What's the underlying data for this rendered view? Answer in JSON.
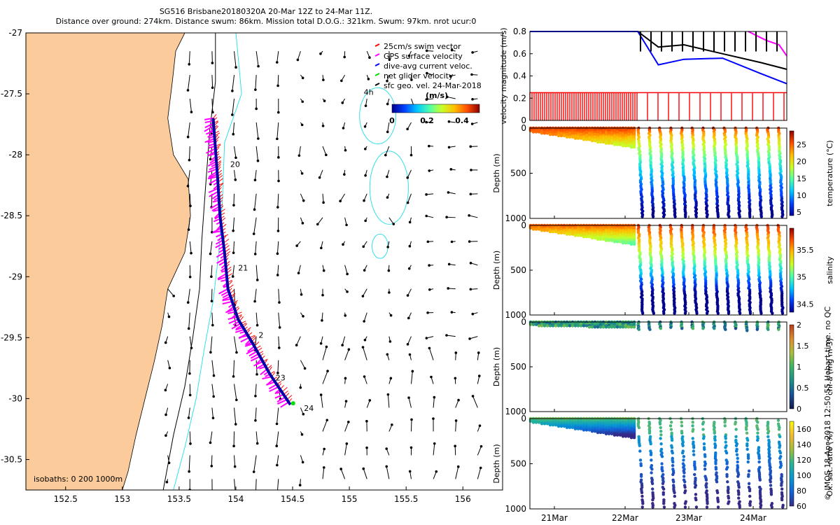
{
  "header": {
    "line1": "SG516 Brisbane20180320A 20-Mar 12Z to 24-Mar 11Z.",
    "line2": "Distance over ground: 274km. Distance swum: 86km. Mission total D.O.G.: 321km. Swum: 97km. nrot ucur:0"
  },
  "credit": "© IMOS 18-Apr-2018 12:50:55 Hobart time. no QC",
  "colors": {
    "land": "#fbcb9b",
    "isobath_200": "#000000",
    "isobath_1000": "#33e0e8",
    "swim_vector": "#ff0000",
    "gps_velocity": "#ff00ff",
    "dive_avg_current": "#0000ff",
    "net_glider_velocity": "#00dd00",
    "track": "#0000aa"
  },
  "chart_data": [
    {
      "type": "scatter",
      "id": "map",
      "xlim": [
        152.15,
        156.35
      ],
      "ylim": [
        -30.75,
        -27
      ],
      "xticks": [
        152.5,
        153,
        153.5,
        154,
        154.5,
        155,
        155.5,
        156
      ],
      "yticks": [
        -27,
        -27.5,
        -28,
        -28.5,
        -29,
        -29.5,
        -30,
        -30.5
      ],
      "legend": {
        "placement": "top-right",
        "entries": [
          {
            "label": "25cm/s swim vector",
            "color": "#ff0000"
          },
          {
            "label": "GPS surface velocity",
            "color": "#ff00ff"
          },
          {
            "label": "dive-avg current veloc.",
            "color": "#0000ff"
          },
          {
            "label": "net glider velocity",
            "color": "#00dd00"
          },
          {
            "label": "sfc geo. vel. 24-Mar-2018",
            "color": "#000000"
          }
        ]
      },
      "colorbar": {
        "title": "(m/s)",
        "ticks": [
          "0",
          "0.2",
          "0.4"
        ],
        "range": [
          0,
          0.5
        ]
      },
      "isobaths_label": "isobaths: 0   200  1000m",
      "eddy_label": "4h",
      "track": [
        {
          "lon": 153.8,
          "lat": -27.7
        },
        {
          "lon": 153.82,
          "lat": -27.95
        },
        {
          "lon": 153.84,
          "lat": -28.2
        },
        {
          "lon": 153.86,
          "lat": -28.5
        },
        {
          "lon": 153.9,
          "lat": -28.8
        },
        {
          "lon": 153.93,
          "lat": -29.1
        },
        {
          "lon": 154.02,
          "lat": -29.35
        },
        {
          "lon": 154.15,
          "lat": -29.55
        },
        {
          "lon": 154.3,
          "lat": -29.8
        },
        {
          "lon": 154.48,
          "lat": -30.05
        }
      ],
      "day_labels": [
        {
          "text": "20",
          "lon": 153.95,
          "lat": -28.1
        },
        {
          "text": "21",
          "lon": 154.02,
          "lat": -28.95
        },
        {
          "text": "2",
          "lon": 154.2,
          "lat": -29.5
        },
        {
          "text": "23",
          "lon": 154.35,
          "lat": -29.85
        },
        {
          "text": "24",
          "lon": 154.6,
          "lat": -30.1
        }
      ],
      "eddies": [
        {
          "label": "4h",
          "lon": 155.25,
          "lat": -27.68,
          "rx": 0.16,
          "ry": 0.23
        },
        {
          "label": "",
          "lon": 155.35,
          "lat": -28.27,
          "rx": 0.17,
          "ry": 0.3
        },
        {
          "label": "",
          "lon": 155.27,
          "lat": -28.75,
          "rx": 0.07,
          "ry": 0.1
        }
      ]
    },
    {
      "type": "line",
      "id": "velocity-panel",
      "ylabel": "velocity magnitude (m/s)",
      "ylim": [
        0,
        0.8
      ],
      "yticks": [
        "0",
        "0.2",
        "0.4",
        "0.6",
        "0.8"
      ],
      "series": [
        {
          "name": "",
          "color": "#000000",
          "x": [
            0.0,
            0.42,
            0.5,
            0.6,
            0.75,
            0.9,
            1.0
          ],
          "y": [
            0.8,
            0.8,
            0.66,
            0.68,
            0.6,
            0.52,
            0.46
          ]
        },
        {
          "name": "",
          "color": "#0000ff",
          "x": [
            0.0,
            0.42,
            0.5,
            0.6,
            0.75,
            0.9,
            1.0
          ],
          "y": [
            0.8,
            0.8,
            0.5,
            0.55,
            0.56,
            0.42,
            0.33
          ]
        },
        {
          "name": "",
          "color": "#ff00ff",
          "x": [
            0.85,
            0.92,
            0.97,
            1.0
          ],
          "y": [
            0.8,
            0.72,
            0.68,
            0.58
          ]
        },
        {
          "name": "",
          "color": "#ff0000",
          "x": [
            0.0,
            1.0
          ],
          "y": [
            0.25,
            0.25
          ]
        }
      ]
    },
    {
      "type": "heatmap",
      "id": "temperature-panel",
      "ylabel": "Depth (m)",
      "yticks": [
        "0",
        "500",
        "1000"
      ],
      "colorbar_label": "temperature (°C)",
      "colorbar_ticks": [
        "5",
        "10",
        "15",
        "20",
        "25"
      ],
      "clim": [
        4,
        29
      ]
    },
    {
      "type": "heatmap",
      "id": "salinity-panel",
      "ylabel": "Depth (m)",
      "yticks": [
        "0",
        "500",
        "1000"
      ],
      "colorbar_label": "salinity",
      "colorbar_ticks": [
        "34.5",
        "35",
        "35.5"
      ],
      "clim": [
        34.35,
        35.9
      ]
    },
    {
      "type": "heatmap",
      "id": "chla-panel",
      "ylabel": "Depth (m)",
      "yticks": [
        "0",
        "500",
        "1000"
      ],
      "colorbar_label": "chl-a (mg m-3)",
      "colorbar_ticks": [
        "0",
        "0.5",
        "1",
        "1.5",
        "2"
      ],
      "clim": [
        0,
        2
      ]
    },
    {
      "type": "heatmap",
      "id": "oxygen-panel",
      "ylabel": "Depth (m)",
      "yticks": [
        "0",
        "500",
        "1000"
      ],
      "colorbar_label": "Ox. sat. ratio (%)",
      "colorbar_ticks": [
        "60",
        "80",
        "100",
        "120",
        "140",
        "160"
      ],
      "clim": [
        60,
        170
      ],
      "xticks": [
        "21Mar",
        "22Mar",
        "23Mar",
        "24Mar"
      ]
    }
  ]
}
